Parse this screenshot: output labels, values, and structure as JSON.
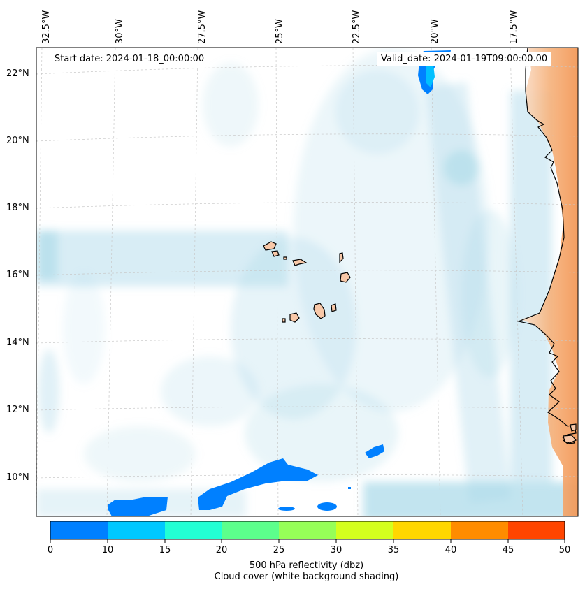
{
  "map": {
    "start_date": "Start date: 2024-01-18_00:00:00",
    "valid_date": "Valid_date: 2024-01-19T09:00:00.00",
    "lon_labels": [
      "32.5°W",
      "30°W",
      "27.5°W",
      "25°W",
      "22.5°W",
      "20°W",
      "17.5°W"
    ],
    "lat_labels": [
      "22°N",
      "20°N",
      "18°N",
      "16°N",
      "14°N",
      "12°N",
      "10°N"
    ]
  },
  "colorbar": {
    "ticks": [
      "0",
      "10",
      "15",
      "20",
      "25",
      "30",
      "35",
      "40",
      "45",
      "50"
    ],
    "colors": [
      "#0080ff",
      "#00c8ff",
      "#22ffd4",
      "#5cff8c",
      "#96ff58",
      "#d4ff1e",
      "#ffd700",
      "#ff8c00",
      "#ff4500"
    ],
    "label_line1": "500 hPa reflectivity (dbz)",
    "label_line2": "Cloud cover (white background shading)"
  },
  "colors": {
    "cloud": "#a8d8e8",
    "land_warm": "#f4a060",
    "island": "#f8c8a8",
    "reflectivity_low": "#0080ff",
    "reflectivity_mid": "#00c0ff",
    "grid": "#cccccc"
  }
}
